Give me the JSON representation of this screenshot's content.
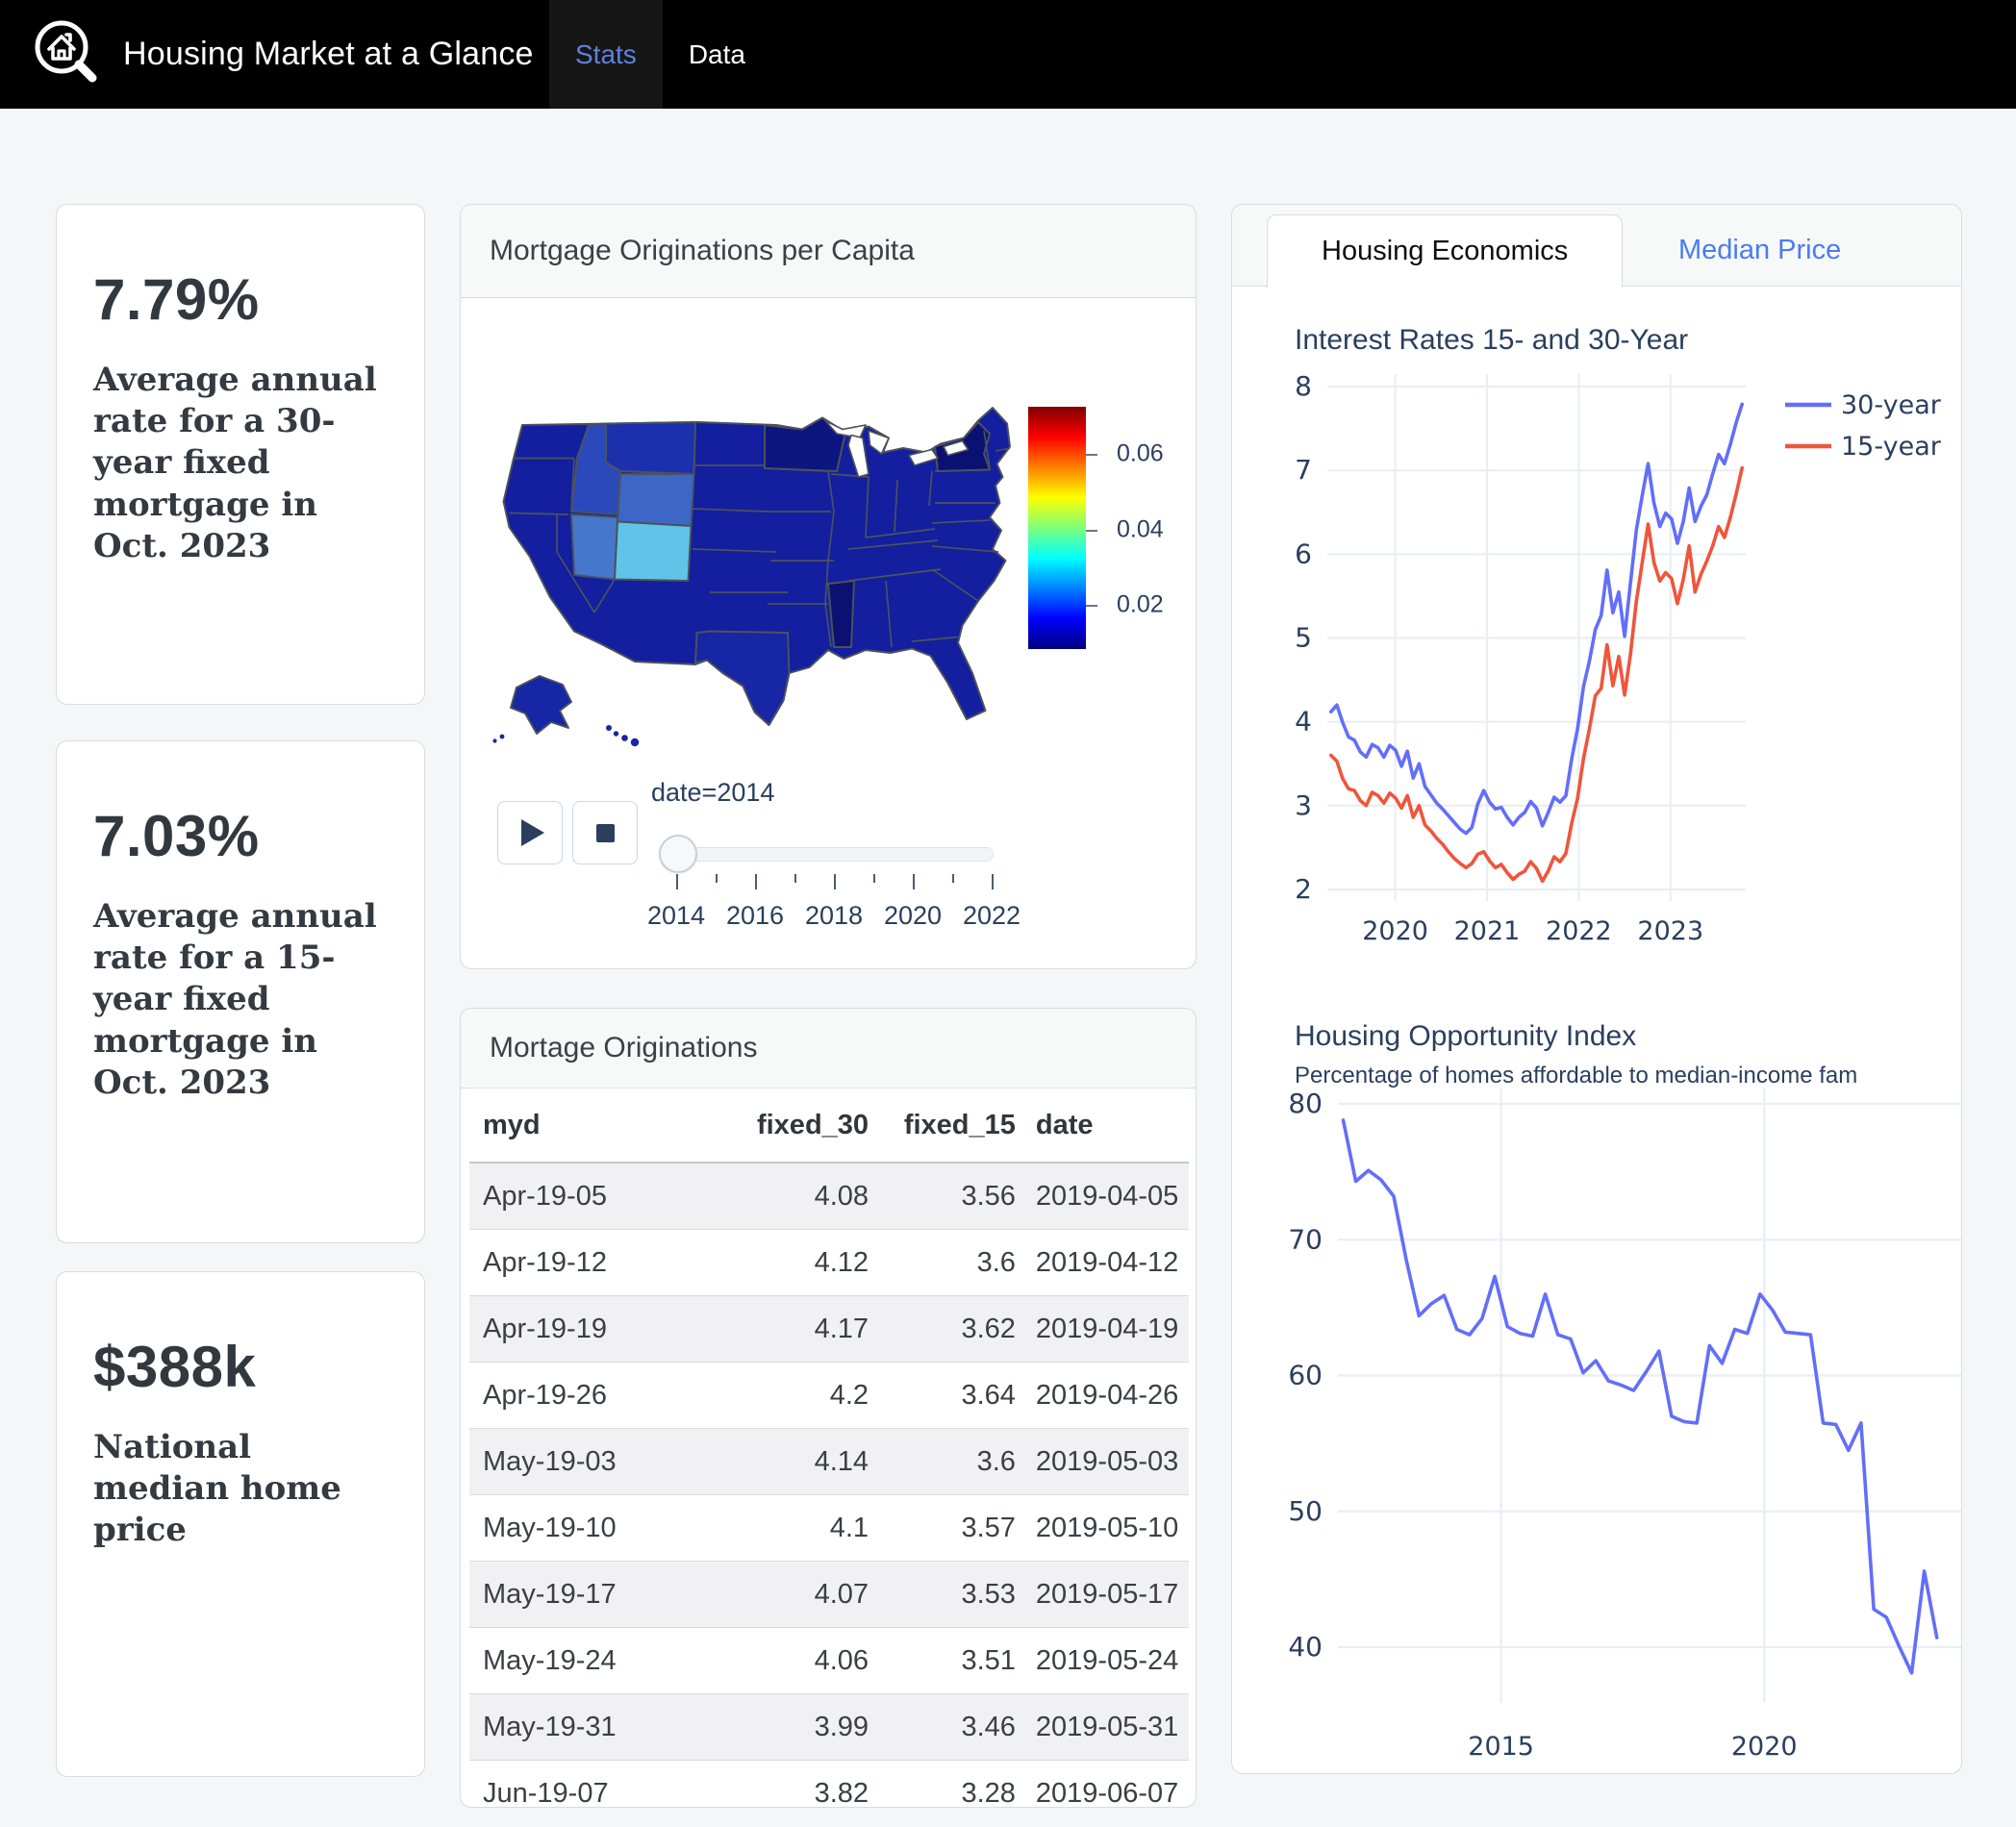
{
  "colors": {
    "header_bg": "#000000",
    "nav_active_text": "#5d81dc",
    "tab_link_blue": "#4a7cf0",
    "plot_text": "#2a3f5f",
    "grid": "#e9eef4",
    "series_30yr": "#636efa",
    "series_15yr": "#ef553b",
    "map_dark": "#131f9e",
    "map_darker": "#0a1173",
    "map_montana": "#1c30ae",
    "map_idaho": "#2b49bb",
    "map_wyoming": "#3c67c7",
    "map_utah": "#4577cd",
    "map_colorado": "#5fc4e7",
    "map_texas": "#1626a4",
    "table_stripe": "#f1f1f3",
    "colorbar_scale": "jet"
  },
  "header": {
    "title": "Housing Market at a Glance",
    "logo": "house-magnifier-icon",
    "tabs": [
      {
        "label": "Stats",
        "active": true
      },
      {
        "label": "Data",
        "active": false
      }
    ]
  },
  "stats": [
    {
      "value": "7.79%",
      "description": "Average annual rate for a 30-year fixed mortgage in Oct. 2023"
    },
    {
      "value": "7.03%",
      "description": "Average annual rate for a 15-year fixed mortgage in Oct. 2023"
    },
    {
      "value": "$388k",
      "description": "National median home price"
    }
  ],
  "map_card": {
    "title": "Mortgage Originations per Capita",
    "colorbar_tick_labels": [
      "0.06",
      "0.04",
      "0.02"
    ],
    "controls": {
      "play": "play-icon",
      "stop": "stop-icon",
      "slider_label": "date=2014",
      "axis_labels": [
        "2014",
        "2016",
        "2018",
        "2020",
        "2022"
      ]
    }
  },
  "table_card": {
    "title": "Mortage Originations",
    "columns": [
      "myd",
      "fixed_30",
      "fixed_15",
      "date"
    ],
    "rows": [
      [
        "Apr-19-05",
        "4.08",
        "3.56",
        "2019-04-05"
      ],
      [
        "Apr-19-12",
        "4.12",
        "3.6",
        "2019-04-12"
      ],
      [
        "Apr-19-19",
        "4.17",
        "3.62",
        "2019-04-19"
      ],
      [
        "Apr-19-26",
        "4.2",
        "3.64",
        "2019-04-26"
      ],
      [
        "May-19-03",
        "4.14",
        "3.6",
        "2019-05-03"
      ],
      [
        "May-19-10",
        "4.1",
        "3.57",
        "2019-05-10"
      ],
      [
        "May-19-17",
        "4.07",
        "3.53",
        "2019-05-17"
      ],
      [
        "May-19-24",
        "4.06",
        "3.51",
        "2019-05-24"
      ],
      [
        "May-19-31",
        "3.99",
        "3.46",
        "2019-05-31"
      ],
      [
        "Jun-19-07",
        "3.82",
        "3.28",
        "2019-06-07"
      ]
    ]
  },
  "right_panel": {
    "tabs": [
      {
        "label": "Housing Economics",
        "active": true
      },
      {
        "label": "Median Price",
        "active": false
      }
    ]
  },
  "chart_data": [
    {
      "type": "line",
      "title": "Interest Rates 15- and 30-Year",
      "xlabel": "",
      "ylabel": "",
      "x_start": 2019.3,
      "x_end": 2023.78,
      "ylim": [
        2,
        8
      ],
      "yticks": [
        2,
        3,
        4,
        5,
        6,
        7,
        8
      ],
      "xticks": [
        2020,
        2021,
        2022,
        2023
      ],
      "grid": true,
      "legend_position": "top-right-outside",
      "series": [
        {
          "name": "30-year",
          "color": "#636efa",
          "values": [
            4.12,
            4.2,
            3.99,
            3.82,
            3.78,
            3.64,
            3.58,
            3.73,
            3.69,
            3.58,
            3.72,
            3.66,
            3.47,
            3.65,
            3.33,
            3.5,
            3.23,
            3.13,
            3.03,
            2.96,
            2.88,
            2.8,
            2.72,
            2.67,
            2.74,
            3.02,
            3.18,
            3.04,
            2.96,
            2.98,
            2.86,
            2.77,
            2.86,
            2.92,
            3.05,
            2.97,
            2.76,
            2.92,
            3.1,
            3.04,
            3.12,
            3.56,
            3.92,
            4.42,
            4.72,
            5.1,
            5.27,
            5.81,
            5.3,
            5.55,
            5.02,
            5.66,
            6.29,
            6.7,
            7.08,
            6.61,
            6.33,
            6.49,
            6.42,
            6.13,
            6.39,
            6.79,
            6.39,
            6.57,
            6.71,
            6.96,
            7.19,
            7.08,
            7.31,
            7.57,
            7.79
          ]
        },
        {
          "name": "15-year",
          "color": "#ef553b",
          "values": [
            3.6,
            3.53,
            3.32,
            3.2,
            3.18,
            3.06,
            3.0,
            3.16,
            3.12,
            3.03,
            3.15,
            3.09,
            2.97,
            3.12,
            2.86,
            3.0,
            2.77,
            2.7,
            2.61,
            2.54,
            2.45,
            2.37,
            2.31,
            2.26,
            2.31,
            2.42,
            2.45,
            2.34,
            2.26,
            2.3,
            2.2,
            2.12,
            2.18,
            2.22,
            2.33,
            2.25,
            2.1,
            2.22,
            2.39,
            2.33,
            2.43,
            2.79,
            3.09,
            3.56,
            3.91,
            4.31,
            4.4,
            4.92,
            4.43,
            4.78,
            4.32,
            4.81,
            5.44,
            5.9,
            6.36,
            5.9,
            5.68,
            5.78,
            5.71,
            5.41,
            5.7,
            6.1,
            5.55,
            5.76,
            5.92,
            6.1,
            6.33,
            6.2,
            6.44,
            6.72,
            7.03
          ]
        }
      ]
    },
    {
      "type": "line",
      "title": "Housing Opportunity Index",
      "subtitle": "Percentage of homes affordable to median-income fam",
      "x_start": 2012.0,
      "x_step": 0.24,
      "ylim": [
        40,
        80
      ],
      "yticks": [
        40,
        50,
        60,
        70,
        80
      ],
      "xticks": [
        2015,
        2020
      ],
      "grid": true,
      "legend_position": "none",
      "series": [
        {
          "name": "Housing Opportunity Index",
          "color": "#636efa",
          "values": [
            78.8,
            74.3,
            75.1,
            74.4,
            73.2,
            68.5,
            64.4,
            65.3,
            65.9,
            63.4,
            63.0,
            64.2,
            67.3,
            63.6,
            63.1,
            62.9,
            66.0,
            63.0,
            62.7,
            60.2,
            61.1,
            59.6,
            59.3,
            58.9,
            60.3,
            61.8,
            57.0,
            56.6,
            56.5,
            62.2,
            60.9,
            63.4,
            63.1,
            66.0,
            64.8,
            63.2,
            63.1,
            63.0,
            56.5,
            56.4,
            54.5,
            56.5,
            42.8,
            42.2,
            40.1,
            38.1,
            45.6,
            40.7
          ]
        }
      ]
    },
    {
      "type": "choropleth",
      "title": "Mortgage Originations per Capita",
      "region": "USA states",
      "frame": "date=2014",
      "colorbar_tick_labels": [
        "0.06",
        "0.04",
        "0.02"
      ],
      "colorscale": "jet",
      "visible_encoding": {
        "most_states": "dark blue (low end of scale)",
        "Colorado": "light cyan (highest visible)",
        "Wyoming": "medium blue",
        "Utah": "medium blue",
        "Idaho": "medium-dark blue",
        "Montana": "medium-dark blue"
      }
    }
  ]
}
